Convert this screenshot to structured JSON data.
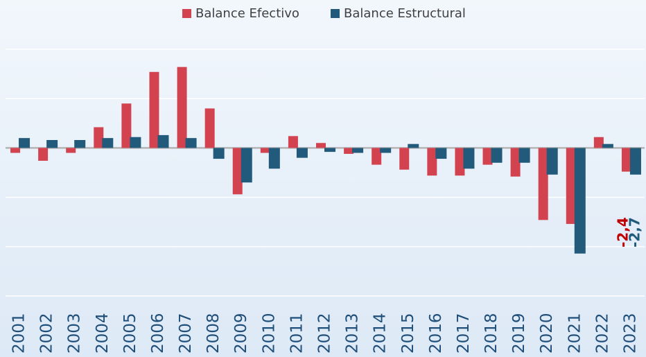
{
  "chart_data": {
    "type": "bar",
    "categories": [
      "2001",
      "2002",
      "2003",
      "2004",
      "2005",
      "2006",
      "2007",
      "2008",
      "2009",
      "2010",
      "2011",
      "2012",
      "2013",
      "2014",
      "2015",
      "2016",
      "2017",
      "2018",
      "2019",
      "2020",
      "2021",
      "2022",
      "2023"
    ],
    "series": [
      {
        "name": "Balance Efectivo",
        "color": "#d2434f",
        "values": [
          -0.5,
          -1.3,
          -0.5,
          2.1,
          4.5,
          7.7,
          8.2,
          4.0,
          -4.7,
          -0.5,
          1.2,
          0.5,
          -0.6,
          -1.7,
          -2.2,
          -2.8,
          -2.8,
          -1.7,
          -2.9,
          -7.3,
          -7.7,
          1.1,
          -2.4
        ],
        "value_labels": [
          null,
          null,
          null,
          null,
          null,
          null,
          null,
          null,
          null,
          null,
          null,
          null,
          null,
          null,
          null,
          null,
          null,
          null,
          null,
          null,
          null,
          null,
          "-2,4"
        ],
        "label_color": "#c00000"
      },
      {
        "name": "Balance Estructural",
        "color": "#215a7a",
        "values": [
          1.0,
          0.8,
          0.8,
          1.0,
          1.1,
          1.3,
          1.0,
          -1.1,
          -3.5,
          -2.1,
          -1.0,
          -0.4,
          -0.5,
          -0.5,
          0.4,
          -1.1,
          -2.1,
          -1.5,
          -1.5,
          -2.7,
          -10.7,
          0.4,
          -2.7
        ],
        "value_labels": [
          null,
          null,
          null,
          null,
          null,
          null,
          null,
          null,
          null,
          null,
          null,
          null,
          null,
          null,
          null,
          null,
          null,
          null,
          null,
          null,
          null,
          null,
          "-2,7"
        ],
        "label_color": "#215a7a"
      }
    ],
    "ylim": [
      -15,
      10
    ],
    "yticks": [
      -15,
      -10,
      -5,
      0,
      5,
      10
    ],
    "grid": true,
    "legend": "top"
  }
}
